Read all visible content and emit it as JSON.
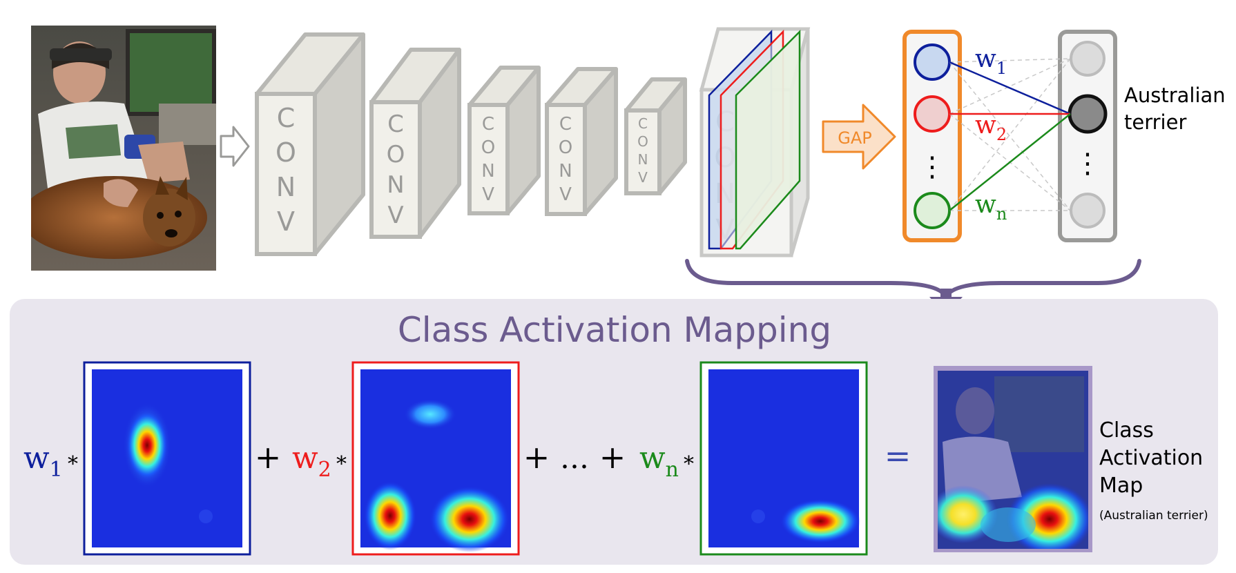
{
  "conv_label": "CONV",
  "gap_label": "GAP",
  "weights": {
    "w1": {
      "base": "w",
      "sub": "1",
      "color": "#0d1f9c"
    },
    "w2": {
      "base": "w",
      "sub": "2",
      "color": "#ee1c1c"
    },
    "wn": {
      "base": "w",
      "sub": "n",
      "color": "#1b8a1b"
    }
  },
  "vertical_dots": "⋮",
  "class_label": {
    "line1": "Australian",
    "line2": "terrier"
  },
  "cam_title": "Class Activation Mapping",
  "equation": {
    "star": "*",
    "plus": "+",
    "ellipsis": "…",
    "equals": "="
  },
  "result_label": {
    "line1": "Class",
    "line2": "Activation",
    "line3": "Map",
    "note": "(Australian terrier)"
  },
  "colors": {
    "blue": "#0d1f9c",
    "red": "#ee1c1c",
    "green": "#1b8a1b",
    "orange": "#f0892a",
    "purple": "#6b5b8e",
    "panel_bg": "#e9e6ee",
    "conv_front": "#f1f0ea",
    "conv_side": "#cfcec8",
    "conv_edge": "#b8b8b4"
  },
  "icons": [
    "input-photo-boy-and-dog",
    "arrow-right-icon",
    "gap-arrow-icon",
    "down-arrow-icon"
  ]
}
